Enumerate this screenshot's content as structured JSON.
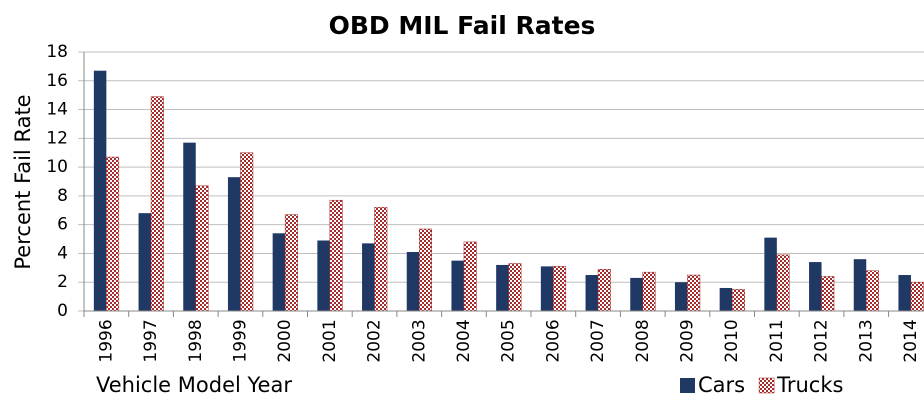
{
  "chart_data": {
    "type": "bar",
    "title": "OBD MIL Fail Rates",
    "x_label": "Vehicle Model Year",
    "y_label": "Percent Fail Rate",
    "categories": [
      "1996",
      "1997",
      "1998",
      "1999",
      "2000",
      "2001",
      "2002",
      "2003",
      "2004",
      "2005",
      "2006",
      "2007",
      "2008",
      "2009",
      "2010",
      "2011",
      "2012",
      "2013",
      "2014"
    ],
    "series": [
      {
        "name": "Cars",
        "color": "#1f3864",
        "values": [
          16.7,
          6.8,
          11.7,
          9.3,
          5.4,
          4.9,
          4.7,
          4.1,
          3.5,
          3.2,
          3.1,
          2.5,
          2.3,
          2.0,
          1.6,
          5.1,
          3.4,
          3.6,
          2.5
        ]
      },
      {
        "name": "Trucks",
        "color": "#a52a2a",
        "values": [
          10.7,
          14.9,
          8.7,
          11.0,
          6.7,
          7.7,
          7.2,
          5.7,
          4.8,
          3.3,
          3.1,
          2.9,
          2.7,
          2.5,
          1.5,
          3.9,
          2.4,
          2.8,
          2.0
        ]
      }
    ],
    "ylim": [
      0,
      18
    ],
    "yticks": [
      0,
      2,
      4,
      6,
      8,
      10,
      12,
      14,
      16,
      18
    ],
    "grid": true,
    "legend": "bottom right"
  }
}
